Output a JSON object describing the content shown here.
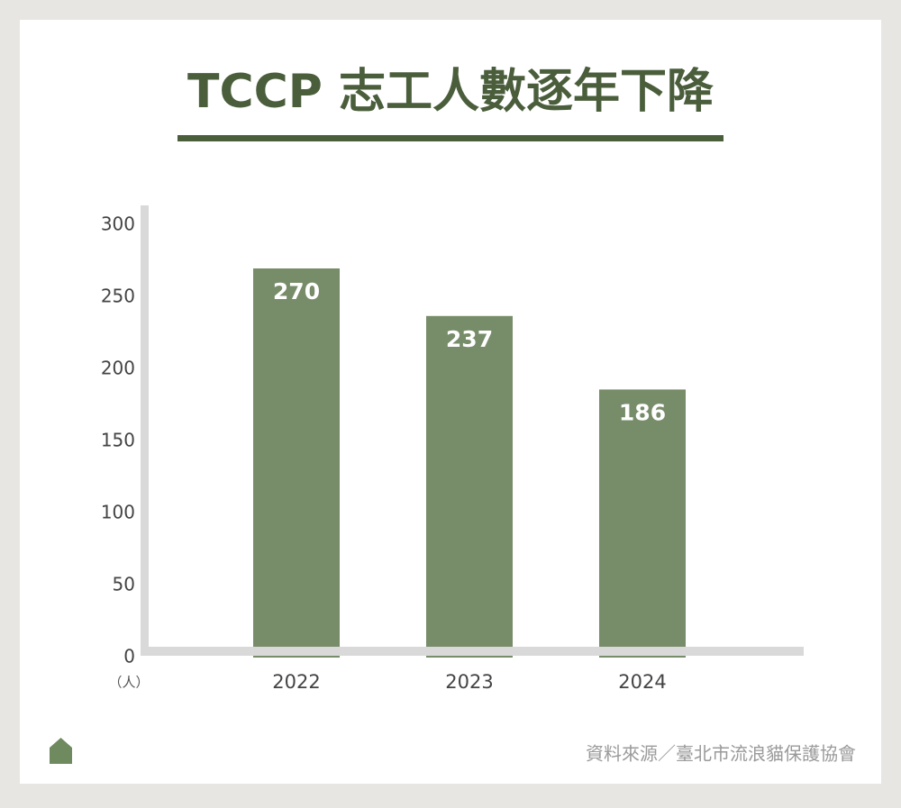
{
  "chart_data": {
    "type": "bar",
    "title": "TCCP 志工人數逐年下降",
    "y_unit": "（人）",
    "categories": [
      "2022",
      "2023",
      "2024"
    ],
    "values": [
      270,
      237,
      186
    ],
    "color": "#778c69",
    "ylim": [
      0,
      300
    ],
    "yticks": [
      0,
      50,
      100,
      150,
      200,
      250,
      300
    ],
    "source": "資料來源／臺北市流浪貓保護協會"
  }
}
